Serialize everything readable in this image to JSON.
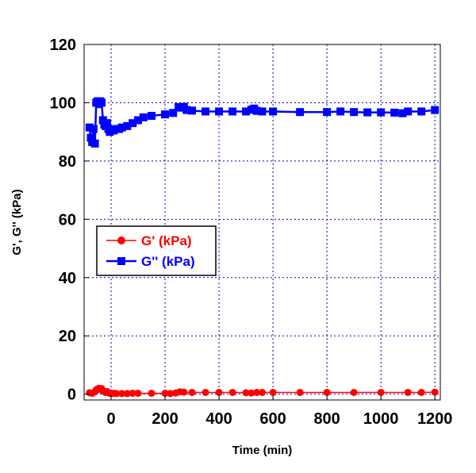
{
  "chart_data": {
    "type": "line",
    "xlabel": "Time (min)",
    "ylabel": "G', G'' (kPa)",
    "xlim": [
      -100,
      1220
    ],
    "ylim": [
      -2,
      120
    ],
    "x_ticks": [
      0,
      200,
      400,
      600,
      800,
      1000,
      1200
    ],
    "y_ticks": [
      0,
      20,
      40,
      60,
      80,
      100,
      120
    ],
    "grid": true,
    "legend_position": "center-left",
    "series": [
      {
        "name": "G' (kPa)",
        "color": "#ff0000",
        "marker": "circle",
        "x": [
          -80,
          -70,
          -60,
          -55,
          -50,
          -45,
          -40,
          -35,
          -30,
          -25,
          -20,
          -15,
          -10,
          -5,
          0,
          10,
          20,
          40,
          60,
          80,
          100,
          150,
          200,
          220,
          240,
          255,
          270,
          300,
          350,
          400,
          450,
          500,
          520,
          540,
          560,
          600,
          700,
          800,
          900,
          1000,
          1100,
          1150,
          1200
        ],
        "values": [
          0.5,
          0.3,
          0.8,
          1.5,
          1.8,
          2.0,
          1.6,
          1.9,
          1.2,
          0.8,
          0.6,
          0.9,
          0.5,
          0.3,
          0.2,
          0.3,
          0.2,
          0.2,
          0.2,
          0.3,
          0.3,
          0.3,
          0.3,
          0.2,
          0.4,
          0.8,
          0.7,
          0.6,
          0.6,
          0.6,
          0.6,
          0.5,
          0.4,
          0.6,
          0.6,
          0.6,
          0.6,
          0.6,
          0.6,
          0.6,
          0.6,
          0.6,
          0.7
        ]
      },
      {
        "name": "G'' (kPa)",
        "color": "#0000ff",
        "marker": "square",
        "x": [
          -80,
          -75,
          -70,
          -65,
          -60,
          -55,
          -50,
          -45,
          -40,
          -35,
          -30,
          -25,
          -20,
          -15,
          -10,
          -5,
          0,
          10,
          20,
          30,
          40,
          60,
          80,
          100,
          120,
          150,
          200,
          230,
          250,
          260,
          270,
          280,
          300,
          350,
          400,
          450,
          500,
          520,
          530,
          540,
          560,
          600,
          700,
          800,
          850,
          900,
          950,
          1000,
          1050,
          1080,
          1100,
          1150,
          1200
        ],
        "values": [
          91.5,
          88,
          86.5,
          91,
          86,
          100,
          100.5,
          99.5,
          100.5,
          100,
          94,
          92.5,
          92,
          93,
          91,
          90,
          90.5,
          90.5,
          91,
          91,
          91.5,
          92,
          93,
          94,
          95,
          95.5,
          96,
          96.5,
          98.5,
          98.3,
          98.6,
          97.5,
          97.3,
          97,
          97,
          97,
          97,
          97.6,
          98,
          97.2,
          97,
          97,
          96.8,
          96.8,
          97,
          96.8,
          96.7,
          96.7,
          96.6,
          96.4,
          97,
          97,
          97.5
        ]
      }
    ]
  }
}
